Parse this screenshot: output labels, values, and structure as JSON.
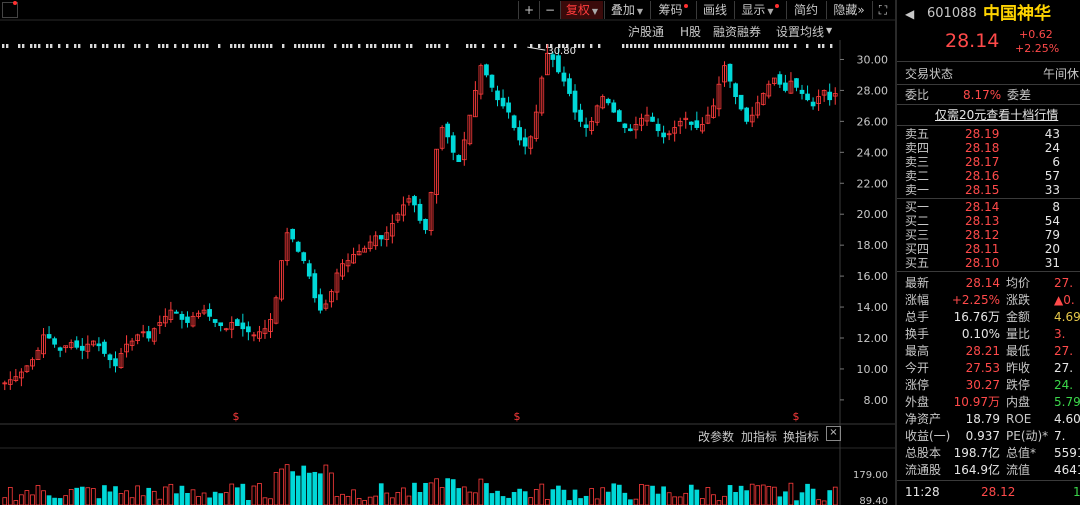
{
  "toolbar": {
    "plus": "+",
    "minus": "−",
    "fuquan": "复权",
    "diejia": "叠加",
    "chouma": "筹码",
    "huaxian": "画线",
    "xianshi": "显示",
    "jianyue": "简约",
    "yincang": "隐藏",
    "more": "»",
    "fullscreen": "⛶"
  },
  "submenu": {
    "hugutong": "沪股通",
    "hgu": "H股",
    "rongzi": "融资融券",
    "junxian": "设置均线"
  },
  "chart_data": [
    {
      "type": "candlestick",
      "title": "",
      "y_ticks": [
        "30.00",
        "28.00",
        "26.00",
        "24.00",
        "22.00",
        "20.00",
        "18.00",
        "16.00",
        "14.00",
        "12.00",
        "10.00",
        "8.00"
      ],
      "ylim": [
        6.7,
        31.0
      ],
      "peak_label": "30.80",
      "close_series": [
        9.1,
        9.3,
        9.5,
        9.8,
        10.2,
        10.6,
        11.2,
        12.2,
        12.0,
        11.6,
        11.2,
        11.5,
        11.7,
        11.4,
        11.2,
        11.6,
        11.8,
        11.5,
        11.0,
        10.6,
        10.2,
        11.0,
        11.6,
        11.8,
        12.2,
        12.4,
        12.0,
        12.6,
        13.0,
        13.4,
        13.8,
        13.6,
        13.2,
        13.0,
        13.4,
        13.6,
        13.8,
        13.4,
        13.0,
        12.8,
        12.6,
        13.0,
        12.8,
        12.6,
        12.4,
        12.2,
        12.4,
        12.6,
        13.2,
        14.6,
        17.0,
        18.8,
        18.4,
        17.6,
        17.0,
        16.0,
        14.6,
        13.8,
        14.2,
        15.0,
        16.2,
        16.8,
        17.0,
        17.4,
        17.6,
        17.8,
        18.2,
        18.6,
        18.4,
        18.8,
        19.4,
        20.0,
        20.6,
        21.0,
        20.6,
        19.6,
        19.0,
        21.4,
        24.2,
        25.6,
        25.0,
        24.0,
        23.4,
        24.8,
        26.4,
        28.0,
        29.6,
        29.0,
        28.2,
        27.4,
        27.0,
        26.6,
        25.6,
        24.8,
        24.4,
        25.0,
        26.6,
        28.8,
        30.4,
        30.0,
        29.2,
        28.6,
        27.8,
        26.6,
        26.0,
        25.6,
        26.0,
        27.0,
        27.6,
        27.2,
        26.6,
        26.0,
        25.6,
        25.4,
        25.8,
        26.2,
        26.4,
        26.0,
        25.4,
        25.0,
        25.2,
        25.6,
        26.0,
        26.2,
        25.8,
        25.6,
        25.8,
        26.4,
        27.0,
        28.4,
        29.6,
        28.6,
        27.6,
        26.8,
        26.0,
        26.4,
        27.2,
        27.8,
        28.4,
        28.8,
        28.4,
        28.0,
        28.6,
        28.2,
        27.8,
        27.4,
        27.0,
        27.6,
        28.0,
        27.4,
        27.8
      ],
      "markers": [
        "$",
        "$",
        "$"
      ],
      "volume_ticks": [
        "179.00",
        "89.40"
      ]
    }
  ],
  "indicator_bar": {
    "gaicanshu": "改参数",
    "jiazhibiao": "加指标",
    "huanzhibiao": "换指标"
  },
  "quote": {
    "code": "601088",
    "name": "中国神华",
    "price": "28.14",
    "change": "+0.62",
    "change_pct": "+2.25%",
    "status_label": "交易状态",
    "status_value": "午间休",
    "weibi_label": "委比",
    "weibi_value": "8.17%",
    "weicha_label": "委差",
    "promo": "仅需20元查看十档行情",
    "asks": [
      {
        "label": "卖五",
        "price": "28.19",
        "vol": "43"
      },
      {
        "label": "卖四",
        "price": "28.18",
        "vol": "24"
      },
      {
        "label": "卖三",
        "price": "28.17",
        "vol": "6"
      },
      {
        "label": "卖二",
        "price": "28.16",
        "vol": "57"
      },
      {
        "label": "卖一",
        "price": "28.15",
        "vol": "33"
      }
    ],
    "bids": [
      {
        "label": "买一",
        "price": "28.14",
        "vol": "8"
      },
      {
        "label": "买二",
        "price": "28.13",
        "vol": "54"
      },
      {
        "label": "买三",
        "price": "28.12",
        "vol": "79"
      },
      {
        "label": "买四",
        "price": "28.11",
        "vol": "20"
      },
      {
        "label": "买五",
        "price": "28.10",
        "vol": "31"
      }
    ],
    "stats": [
      {
        "l1": "最新",
        "v1": "28.14",
        "l2": "均价",
        "v2": "27.",
        "c1": "red",
        "c2": "red"
      },
      {
        "l1": "涨幅",
        "v1": "+2.25%",
        "l2": "涨跌",
        "v2": "▲0.",
        "c1": "red",
        "c2": "red"
      },
      {
        "l1": "总手",
        "v1": "16.76万",
        "l2": "金额",
        "v2": "4.69",
        "c1": "white",
        "c2": "yellow"
      },
      {
        "l1": "换手",
        "v1": "0.10%",
        "l2": "量比",
        "v2": "3.",
        "c1": "white",
        "c2": "red"
      },
      {
        "l1": "最高",
        "v1": "28.21",
        "l2": "最低",
        "v2": "27.",
        "c1": "red",
        "c2": "red"
      },
      {
        "l1": "今开",
        "v1": "27.53",
        "l2": "昨收",
        "v2": "27.",
        "c1": "red",
        "c2": "white"
      },
      {
        "l1": "涨停",
        "v1": "30.27",
        "l2": "跌停",
        "v2": "24.",
        "c1": "red",
        "c2": "green"
      },
      {
        "l1": "外盘",
        "v1": "10.97万",
        "l2": "内盘",
        "v2": "5.79",
        "c1": "red",
        "c2": "green"
      },
      {
        "l1": "净资产",
        "v1": "18.79",
        "l2": "ROE",
        "v2": "4.60",
        "c1": "white",
        "c2": "white"
      },
      {
        "l1": "收益(一)",
        "v1": "0.937",
        "l2": "PE(动)*",
        "v2": "7.",
        "c1": "white",
        "c2": "white"
      },
      {
        "l1": "总股本",
        "v1": "198.7亿",
        "l2": "总值*",
        "v2": "5591",
        "c1": "white",
        "c2": "white"
      },
      {
        "l1": "流通股",
        "v1": "164.9亿",
        "l2": "流值",
        "v2": "4641",
        "c1": "white",
        "c2": "white"
      }
    ],
    "tick_time": "11:28",
    "tick_price": "28.12",
    "tick_vol": "1"
  }
}
